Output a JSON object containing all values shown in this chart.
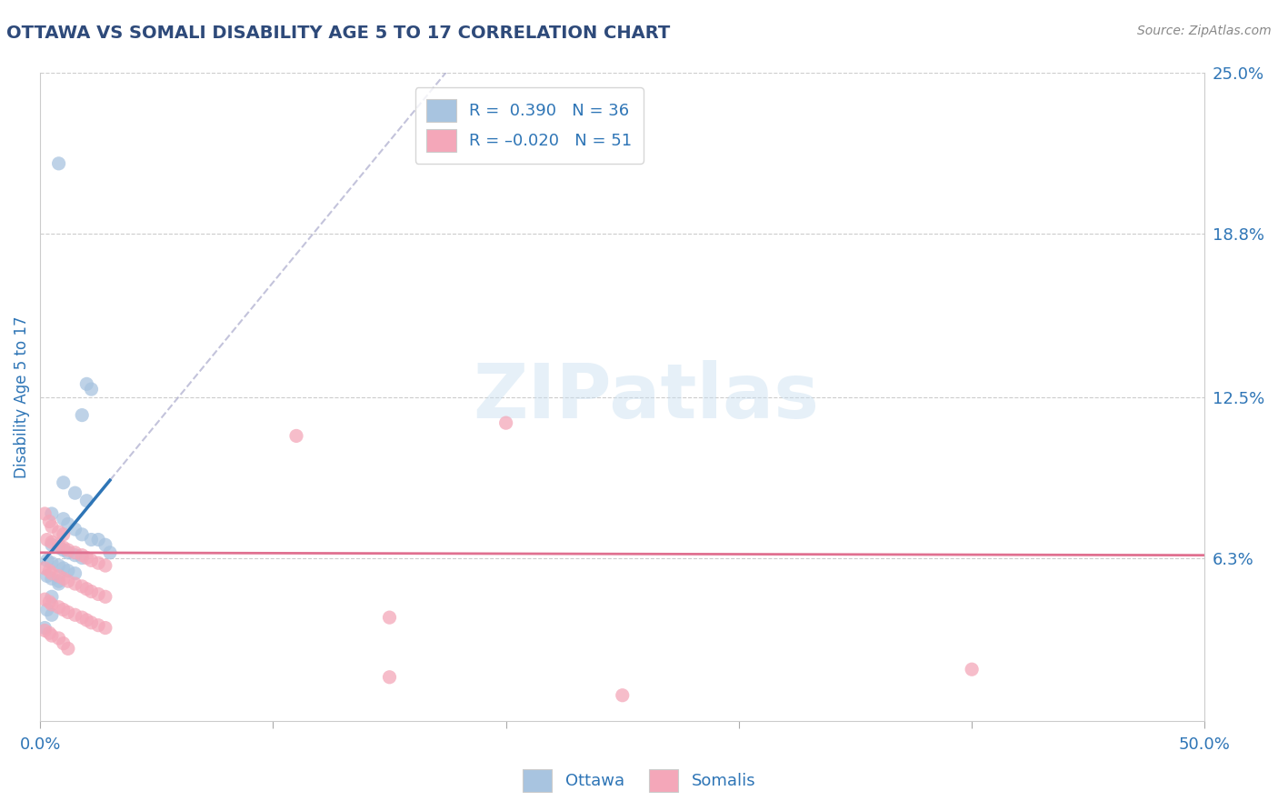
{
  "title": "OTTAWA VS SOMALI DISABILITY AGE 5 TO 17 CORRELATION CHART",
  "source": "Source: ZipAtlas.com",
  "ylabel": "Disability Age 5 to 17",
  "xlim": [
    0.0,
    0.5
  ],
  "ylim": [
    -0.02,
    0.265
  ],
  "plot_ylim": [
    0.0,
    0.25
  ],
  "xticks": [
    0.0,
    0.1,
    0.2,
    0.3,
    0.4,
    0.5
  ],
  "yticks": [
    0.063,
    0.125,
    0.188,
    0.25
  ],
  "ytick_labels": [
    "6.3%",
    "12.5%",
    "18.8%",
    "25.0%"
  ],
  "xtick_labels": [
    "0.0%",
    "",
    "",
    "",
    "",
    "50.0%"
  ],
  "title_color": "#2E4A7A",
  "axis_color": "#2E75B6",
  "ottawa_color": "#A8C4E0",
  "somali_color": "#F4A7B9",
  "ottawa_line_color": "#2E75B6",
  "somali_line_color": "#E07090",
  "ottawa_scatter": [
    [
      0.008,
      0.215
    ],
    [
      0.02,
      0.13
    ],
    [
      0.022,
      0.128
    ],
    [
      0.018,
      0.118
    ],
    [
      0.01,
      0.092
    ],
    [
      0.015,
      0.088
    ],
    [
      0.02,
      0.085
    ],
    [
      0.005,
      0.08
    ],
    [
      0.01,
      0.078
    ],
    [
      0.012,
      0.076
    ],
    [
      0.015,
      0.074
    ],
    [
      0.018,
      0.072
    ],
    [
      0.022,
      0.07
    ],
    [
      0.005,
      0.068
    ],
    [
      0.008,
      0.067
    ],
    [
      0.01,
      0.066
    ],
    [
      0.012,
      0.065
    ],
    [
      0.015,
      0.064
    ],
    [
      0.018,
      0.063
    ],
    [
      0.003,
      0.062
    ],
    [
      0.005,
      0.061
    ],
    [
      0.008,
      0.06
    ],
    [
      0.01,
      0.059
    ],
    [
      0.012,
      0.058
    ],
    [
      0.015,
      0.057
    ],
    [
      0.003,
      0.056
    ],
    [
      0.005,
      0.055
    ],
    [
      0.008,
      0.054
    ],
    [
      0.025,
      0.07
    ],
    [
      0.028,
      0.068
    ],
    [
      0.003,
      0.043
    ],
    [
      0.005,
      0.041
    ],
    [
      0.002,
      0.036
    ],
    [
      0.005,
      0.048
    ],
    [
      0.008,
      0.053
    ],
    [
      0.03,
      0.065
    ]
  ],
  "somali_scatter": [
    [
      0.002,
      0.08
    ],
    [
      0.004,
      0.077
    ],
    [
      0.005,
      0.075
    ],
    [
      0.008,
      0.073
    ],
    [
      0.01,
      0.072
    ],
    [
      0.003,
      0.07
    ],
    [
      0.005,
      0.069
    ],
    [
      0.008,
      0.068
    ],
    [
      0.01,
      0.067
    ],
    [
      0.012,
      0.066
    ],
    [
      0.015,
      0.065
    ],
    [
      0.018,
      0.064
    ],
    [
      0.02,
      0.063
    ],
    [
      0.022,
      0.062
    ],
    [
      0.025,
      0.061
    ],
    [
      0.028,
      0.06
    ],
    [
      0.002,
      0.059
    ],
    [
      0.004,
      0.058
    ],
    [
      0.005,
      0.057
    ],
    [
      0.008,
      0.056
    ],
    [
      0.01,
      0.055
    ],
    [
      0.012,
      0.054
    ],
    [
      0.015,
      0.053
    ],
    [
      0.018,
      0.052
    ],
    [
      0.02,
      0.051
    ],
    [
      0.022,
      0.05
    ],
    [
      0.025,
      0.049
    ],
    [
      0.028,
      0.048
    ],
    [
      0.002,
      0.047
    ],
    [
      0.004,
      0.046
    ],
    [
      0.11,
      0.11
    ],
    [
      0.2,
      0.115
    ],
    [
      0.005,
      0.045
    ],
    [
      0.008,
      0.044
    ],
    [
      0.01,
      0.043
    ],
    [
      0.012,
      0.042
    ],
    [
      0.015,
      0.041
    ],
    [
      0.018,
      0.04
    ],
    [
      0.02,
      0.039
    ],
    [
      0.022,
      0.038
    ],
    [
      0.025,
      0.037
    ],
    [
      0.028,
      0.036
    ],
    [
      0.002,
      0.035
    ],
    [
      0.004,
      0.034
    ],
    [
      0.15,
      0.04
    ],
    [
      0.005,
      0.033
    ],
    [
      0.008,
      0.032
    ],
    [
      0.01,
      0.03
    ],
    [
      0.012,
      0.028
    ],
    [
      0.4,
      0.02
    ],
    [
      0.15,
      0.017
    ],
    [
      0.25,
      0.01
    ]
  ]
}
